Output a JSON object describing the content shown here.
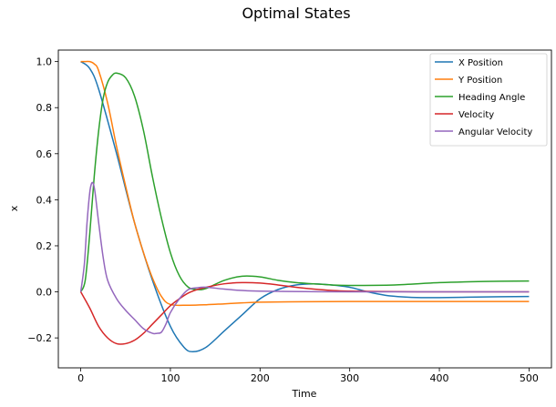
{
  "chart_data": {
    "type": "line",
    "title": "Optimal States",
    "xlabel": "Time",
    "ylabel": "x",
    "xlim": [
      -25,
      525
    ],
    "ylim": [
      -0.33,
      1.05
    ],
    "xticks": [
      0,
      100,
      200,
      300,
      400,
      500
    ],
    "yticks": [
      -0.2,
      0.0,
      0.2,
      0.4,
      0.6,
      0.8,
      1.0
    ],
    "ytick_labels": [
      "−0.2",
      "0.0",
      "0.2",
      "0.4",
      "0.6",
      "0.8",
      "1.0"
    ],
    "grid": false,
    "legend_position": "top-right",
    "series": [
      {
        "name": "X Position",
        "color": "#1f77b4",
        "x": [
          0,
          10,
          20,
          40,
          60,
          80,
          100,
          115,
          125,
          140,
          160,
          180,
          200,
          220,
          240,
          260,
          280,
          300,
          320,
          340,
          360,
          380,
          400,
          450,
          500
        ],
        "y": [
          1.0,
          0.97,
          0.88,
          0.6,
          0.3,
          0.05,
          -0.15,
          -0.24,
          -0.26,
          -0.24,
          -0.17,
          -0.1,
          -0.03,
          0.01,
          0.03,
          0.035,
          0.03,
          0.02,
          0.0,
          -0.015,
          -0.022,
          -0.025,
          -0.025,
          -0.022,
          -0.02
        ]
      },
      {
        "name": "Y Position",
        "color": "#ff7f0e",
        "x": [
          0,
          5,
          10,
          15,
          20,
          30,
          40,
          50,
          60,
          70,
          80,
          90,
          100,
          120,
          140,
          160,
          180,
          200,
          250,
          300,
          350,
          400,
          450,
          500
        ],
        "y": [
          1.0,
          1.0,
          1.0,
          0.99,
          0.96,
          0.82,
          0.63,
          0.46,
          0.3,
          0.17,
          0.06,
          -0.02,
          -0.055,
          -0.058,
          -0.056,
          -0.052,
          -0.048,
          -0.045,
          -0.043,
          -0.042,
          -0.042,
          -0.042,
          -0.042,
          -0.042
        ]
      },
      {
        "name": "Heading Angle",
        "color": "#2ca02c",
        "x": [
          0,
          5,
          10,
          15,
          20,
          25,
          30,
          35,
          40,
          50,
          60,
          70,
          80,
          90,
          100,
          110,
          120,
          130,
          140,
          160,
          180,
          200,
          220,
          240,
          260,
          280,
          300,
          350,
          400,
          450,
          500
        ],
        "y": [
          0.0,
          0.05,
          0.25,
          0.5,
          0.7,
          0.84,
          0.91,
          0.94,
          0.95,
          0.93,
          0.85,
          0.7,
          0.5,
          0.32,
          0.17,
          0.07,
          0.02,
          0.01,
          0.015,
          0.05,
          0.068,
          0.065,
          0.05,
          0.04,
          0.035,
          0.03,
          0.028,
          0.03,
          0.04,
          0.045,
          0.047
        ]
      },
      {
        "name": "Velocity",
        "color": "#d62728",
        "x": [
          0,
          10,
          20,
          30,
          40,
          50,
          60,
          70,
          80,
          90,
          100,
          110,
          120,
          130,
          140,
          160,
          180,
          200,
          220,
          240,
          260,
          280,
          300,
          350,
          400,
          450,
          500
        ],
        "y": [
          0.0,
          -0.07,
          -0.15,
          -0.2,
          -0.225,
          -0.225,
          -0.21,
          -0.18,
          -0.14,
          -0.1,
          -0.06,
          -0.03,
          -0.005,
          0.01,
          0.02,
          0.035,
          0.04,
          0.038,
          0.03,
          0.02,
          0.012,
          0.006,
          0.003,
          0.001,
          0.0,
          0.0,
          0.0
        ]
      },
      {
        "name": "Angular Velocity",
        "color": "#9467bd",
        "x": [
          0,
          4,
          7,
          10,
          12,
          14,
          16,
          20,
          25,
          30,
          40,
          50,
          60,
          70,
          80,
          85,
          90,
          95,
          100,
          110,
          120,
          130,
          140,
          160,
          180,
          200,
          250,
          300,
          400,
          500
        ],
        "y": [
          0.0,
          0.12,
          0.3,
          0.43,
          0.47,
          0.47,
          0.43,
          0.3,
          0.15,
          0.05,
          -0.03,
          -0.08,
          -0.12,
          -0.16,
          -0.18,
          -0.18,
          -0.175,
          -0.14,
          -0.09,
          -0.03,
          0.01,
          0.018,
          0.02,
          0.012,
          0.006,
          0.003,
          0.001,
          0.0,
          0.0,
          0.0
        ]
      }
    ]
  }
}
